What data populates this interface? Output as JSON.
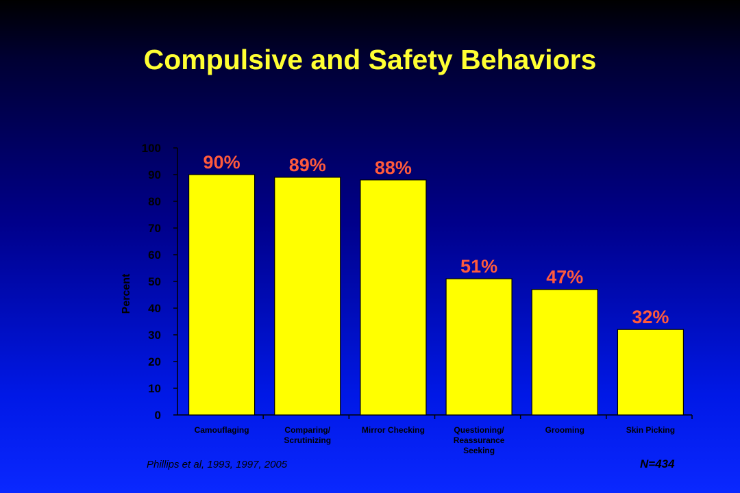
{
  "chart_data": {
    "type": "bar",
    "title": "Compulsive and Safety Behaviors",
    "ylabel": "Percent",
    "xlabel": "",
    "ylim": [
      0,
      100
    ],
    "yticks": [
      0,
      10,
      20,
      30,
      40,
      50,
      60,
      70,
      80,
      90,
      100
    ],
    "categories": [
      [
        "Camouflaging"
      ],
      [
        "Comparing/",
        "Scrutinizing"
      ],
      [
        "Mirror Checking"
      ],
      [
        "Questioning/",
        "Reassurance",
        "Seeking"
      ],
      [
        "Grooming"
      ],
      [
        "Skin Picking"
      ]
    ],
    "values": [
      90,
      89,
      88,
      51,
      47,
      32
    ],
    "data_labels": [
      "90%",
      "89%",
      "88%",
      "51%",
      "47%",
      "32%"
    ],
    "grid": false,
    "legend": "none",
    "colors": {
      "bar_fill": "#ffff00",
      "bar_stroke": "#000000",
      "data_label": "#ff5a3c",
      "title": "#ffff33",
      "axis": "#000000"
    }
  },
  "footer": {
    "source": "Phillips et al, 1993, 1997, 2005",
    "sample_size": "N=434"
  }
}
